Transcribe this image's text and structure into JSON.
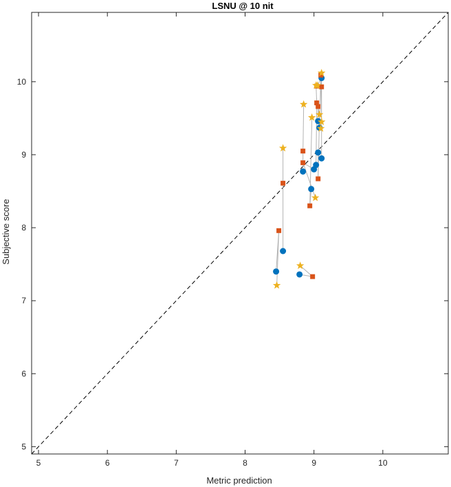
{
  "chart_data": {
    "type": "scatter",
    "title": "LSNU @ 10 nit",
    "xlabel": "Metric prediction",
    "ylabel": "Subjective score",
    "xlim": [
      4.9,
      10.95
    ],
    "ylim": [
      4.9,
      10.95
    ],
    "xticks": [
      5,
      6,
      7,
      8,
      9,
      10
    ],
    "yticks": [
      5,
      6,
      7,
      8,
      9,
      10
    ],
    "grid": false,
    "legend": "none",
    "reference_line": {
      "style": "dashed",
      "from": [
        4.9,
        4.9
      ],
      "to": [
        10.95,
        10.95
      ],
      "color": "#000000"
    },
    "connector_color": "#b3b3b3",
    "series": [
      {
        "marker": "circle",
        "color": "#0072bd",
        "points": [
          [
            8.45,
            7.4
          ],
          [
            8.55,
            7.68
          ],
          [
            8.79,
            7.36
          ],
          [
            8.84,
            8.77
          ],
          [
            8.96,
            8.53
          ],
          [
            9.0,
            8.8
          ],
          [
            9.03,
            8.86
          ],
          [
            9.06,
            9.03
          ],
          [
            9.06,
            9.46
          ],
          [
            9.08,
            9.37
          ],
          [
            9.11,
            8.95
          ],
          [
            9.11,
            10.05
          ]
        ]
      },
      {
        "marker": "square",
        "color": "#d95319",
        "points": [
          [
            8.49,
            7.96
          ],
          [
            8.55,
            8.61
          ],
          [
            8.98,
            7.33
          ],
          [
            8.84,
            9.05
          ],
          [
            8.94,
            8.3
          ],
          [
            8.84,
            8.89
          ],
          [
            9.04,
            9.71
          ],
          [
            9.06,
            8.67
          ],
          [
            9.06,
            9.66
          ],
          [
            9.1,
            10.09
          ],
          [
            9.11,
            9.93
          ],
          [
            9.04,
            9.94
          ]
        ]
      },
      {
        "marker": "star",
        "color": "#edb120",
        "points": [
          [
            8.46,
            7.21
          ],
          [
            8.55,
            9.09
          ],
          [
            8.8,
            7.48
          ],
          [
            8.85,
            9.69
          ],
          [
            8.97,
            9.51
          ],
          [
            9.02,
            8.41
          ],
          [
            9.03,
            9.95
          ],
          [
            9.08,
            9.55
          ],
          [
            9.1,
            9.36
          ],
          [
            9.11,
            9.45
          ],
          [
            9.11,
            10.12
          ],
          [
            9.05,
            9.95
          ]
        ]
      }
    ]
  }
}
